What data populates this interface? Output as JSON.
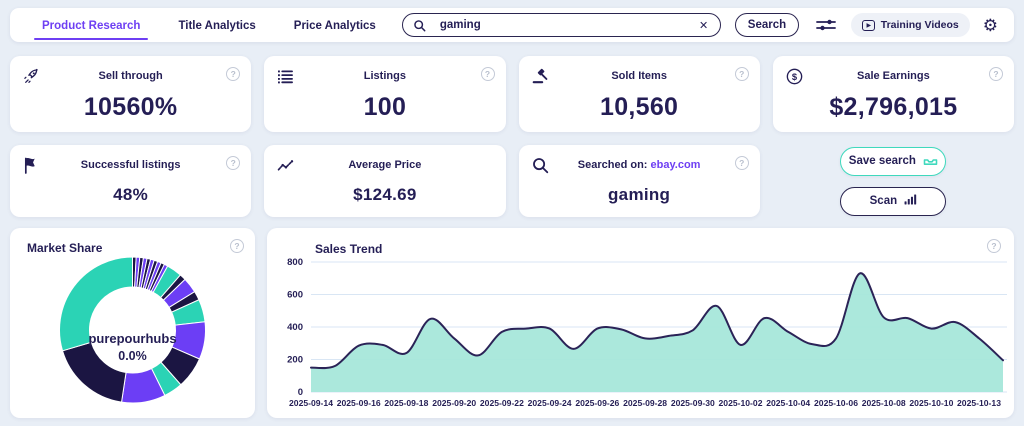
{
  "colors": {
    "accent_purple": "#6e3ff3",
    "navy": "#241e55",
    "teal": "#3fd9bd",
    "chart_fill": "#a6e7da",
    "chart_stroke": "#2b2357",
    "gridline": "#d9e6f4",
    "donut_navy": "#1b1542",
    "donut_purple": "#6c3ef5",
    "donut_teal": "#2bd3b5"
  },
  "icons": {
    "clear": "✕",
    "gear": "⚙",
    "play": "▶",
    "help": "?"
  },
  "topbar": {
    "tabs": [
      {
        "label": "Product Research",
        "active": true
      },
      {
        "label": "Title Analytics",
        "active": false
      },
      {
        "label": "Price Analytics",
        "active": false
      }
    ],
    "search_value": "gaming",
    "search_button": "Search",
    "training_videos": "Training Videos"
  },
  "cards": [
    {
      "icon": "rocket-icon",
      "title": "Sell through",
      "value": "10560%",
      "help": true
    },
    {
      "icon": "list-icon",
      "title": "Listings",
      "value": "100",
      "help": true
    },
    {
      "icon": "gavel-icon",
      "title": "Sold Items",
      "value": "10,560",
      "help": true
    },
    {
      "icon": "dollar-icon",
      "title": "Sale Earnings",
      "value": "$2,796,015",
      "help": true
    },
    {
      "icon": "flag-icon",
      "title": "Successful listings",
      "value": "48%",
      "help": true
    },
    {
      "icon": "trend-icon",
      "title": "Average Price",
      "value": "$124.69",
      "help": false
    },
    {
      "icon": "search-icon",
      "title": "Searched on:",
      "link": "ebay.com",
      "value": "gaming",
      "help": true
    }
  ],
  "buttons": {
    "save_search": "Save search",
    "scan": "Scan"
  },
  "market_share": {
    "title": "Market Share",
    "center_label": "purepourhubs",
    "center_value": "0.0%"
  },
  "sales_trend": {
    "title": "Sales Trend"
  },
  "chart_data": [
    {
      "type": "pie",
      "title": "Market Share",
      "donut": true,
      "center_label": "purepourhubs",
      "center_value": "0.0%",
      "start_angle_deg": -90,
      "direction": "clockwise",
      "slices": [
        {
          "value": 0.8,
          "color": "#1b1542"
        },
        {
          "value": 0.8,
          "color": "#6c3ef5"
        },
        {
          "value": 0.8,
          "color": "#1b1542"
        },
        {
          "value": 0.8,
          "color": "#6c3ef5"
        },
        {
          "value": 0.8,
          "color": "#1b1542"
        },
        {
          "value": 0.8,
          "color": "#6c3ef5"
        },
        {
          "value": 0.8,
          "color": "#1b1542"
        },
        {
          "value": 0.8,
          "color": "#6c3ef5"
        },
        {
          "value": 0.8,
          "color": "#1b1542"
        },
        {
          "value": 0.8,
          "color": "#6c3ef5"
        },
        {
          "value": 3.4,
          "color": "#2bd3b5"
        },
        {
          "value": 1.4,
          "color": "#1b1542"
        },
        {
          "value": 3.4,
          "color": "#6c3ef5"
        },
        {
          "value": 2.0,
          "color": "#1b1542"
        },
        {
          "value": 5.0,
          "color": "#2bd3b5"
        },
        {
          "value": 8.3,
          "color": "#6c3ef5"
        },
        {
          "value": 7.0,
          "color": "#1b1542"
        },
        {
          "value": 4.2,
          "color": "#2bd3b5"
        },
        {
          "value": 9.7,
          "color": "#6c3ef5"
        },
        {
          "value": 18.0,
          "color": "#1b1542"
        },
        {
          "value": 29.6,
          "color": "#2bd3b5"
        }
      ]
    },
    {
      "type": "area",
      "title": "Sales Trend",
      "series_name": "Sales",
      "x": [
        "2025-09-14",
        "2025-09-15",
        "2025-09-16",
        "2025-09-17",
        "2025-09-18",
        "2025-09-19",
        "2025-09-20",
        "2025-09-21",
        "2025-09-22",
        "2025-09-23",
        "2025-09-24",
        "2025-09-25",
        "2025-09-26",
        "2025-09-27",
        "2025-09-28",
        "2025-09-29",
        "2025-09-30",
        "2025-10-01",
        "2025-10-02",
        "2025-10-03",
        "2025-10-04",
        "2025-10-05",
        "2025-10-06",
        "2025-10-07",
        "2025-10-08",
        "2025-10-09",
        "2025-10-10",
        "2025-10-11",
        "2025-10-12",
        "2025-10-13"
      ],
      "values": [
        150,
        160,
        285,
        290,
        240,
        450,
        330,
        225,
        370,
        390,
        390,
        265,
        390,
        385,
        330,
        345,
        380,
        530,
        290,
        455,
        370,
        295,
        330,
        730,
        460,
        455,
        390,
        430,
        330,
        195
      ],
      "ylim": [
        0,
        800
      ],
      "yticks": [
        0,
        200,
        400,
        600,
        800
      ],
      "xtick_labels": [
        "2025-09-14",
        "2025-09-16",
        "2025-09-18",
        "2025-09-20",
        "2025-09-22",
        "2025-09-24",
        "2025-09-26",
        "2025-09-28",
        "2025-09-30",
        "2025-10-02",
        "2025-10-04",
        "2025-10-06",
        "2025-10-08",
        "2025-10-10",
        "2025-10-13"
      ],
      "grid": true,
      "legend": "none",
      "fill": "#a6e7da",
      "stroke": "#2b2357"
    }
  ]
}
